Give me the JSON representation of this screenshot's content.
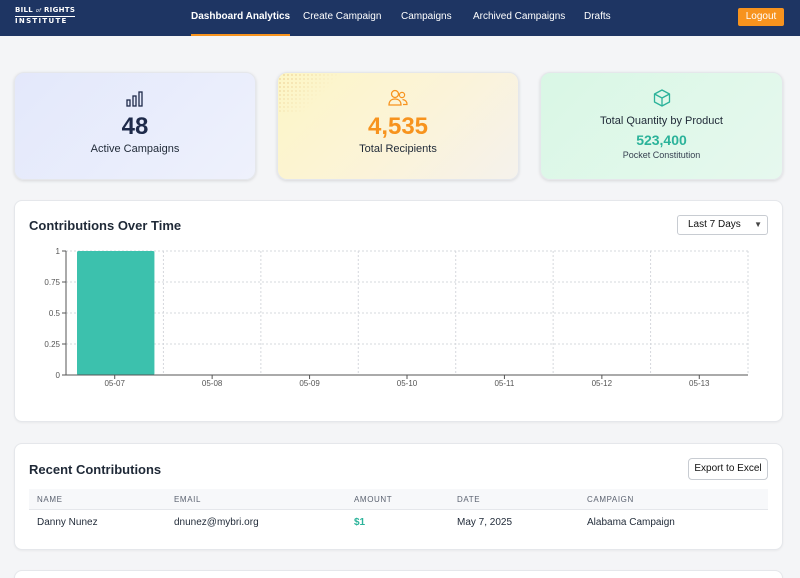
{
  "header": {
    "logo_line1_a": "BILL",
    "logo_line1_of": "of",
    "logo_line1_b": "RIGHTS",
    "logo_line2": "INSTITUTE",
    "nav": [
      {
        "label": "Dashboard Analytics",
        "active": true
      },
      {
        "label": "Create Campaign",
        "active": false
      },
      {
        "label": "Campaigns",
        "active": false
      },
      {
        "label": "Archived Campaigns",
        "active": false
      },
      {
        "label": "Drafts",
        "active": false
      }
    ],
    "logout_label": "Logout"
  },
  "stats": {
    "active_campaigns": {
      "value": "48",
      "label": "Active Campaigns",
      "icon": "bar-chart-icon",
      "color": "#1e2a4a"
    },
    "total_recipients": {
      "value": "4,535",
      "label": "Total Recipients",
      "icon": "users-icon",
      "color": "#f7931e"
    },
    "quantity_by_product": {
      "title": "Total Quantity by Product",
      "value": "523,400",
      "label": "Pocket Constitution",
      "icon": "cube-icon",
      "color": "#2bb39a"
    }
  },
  "contributions_chart": {
    "title": "Contributions Over Time",
    "range_select": "Last 7 Days"
  },
  "chart_data": {
    "type": "bar",
    "title": "Contributions Over Time",
    "categories": [
      "05-07",
      "05-08",
      "05-09",
      "05-10",
      "05-11",
      "05-12",
      "05-13"
    ],
    "values": [
      1,
      0,
      0,
      0,
      0,
      0,
      0
    ],
    "y_ticks": [
      "0",
      "0.25",
      "0.5",
      "0.75",
      "1"
    ],
    "ylim": [
      0,
      1
    ],
    "grid": true,
    "bar_color": "#3cc1ad"
  },
  "recent_contributions": {
    "title": "Recent Contributions",
    "export_label": "Export to Excel",
    "columns": [
      "NAME",
      "EMAIL",
      "AMOUNT",
      "DATE",
      "CAMPAIGN"
    ],
    "rows": [
      {
        "name": "Danny Nunez",
        "email": "dnunez@mybri.org",
        "amount": "$1",
        "date": "May 7, 2025",
        "campaign": "Alabama Campaign"
      }
    ]
  },
  "colors": {
    "header_bg": "#1e3563",
    "accent_orange": "#f7931e",
    "accent_teal": "#2bb39a"
  }
}
